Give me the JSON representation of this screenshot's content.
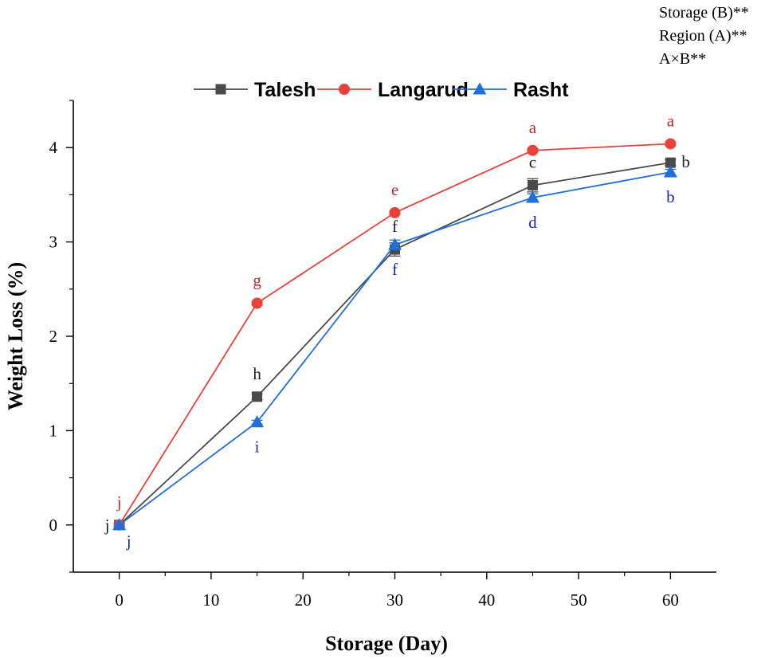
{
  "chart_data": {
    "type": "line",
    "xlabel": "Storage (Day)",
    "ylabel": "Weight Loss (%)",
    "xlim": [
      -5,
      65
    ],
    "ylim": [
      -0.5,
      4.5
    ],
    "xticks": [
      0,
      10,
      20,
      30,
      40,
      50,
      60
    ],
    "yticks": [
      0,
      1,
      2,
      3,
      4
    ],
    "x": [
      0,
      15,
      30,
      45,
      60
    ],
    "legend_position": "top",
    "significance": [
      "Storage (B)**",
      "Region (A)**",
      "A×B**"
    ],
    "series": [
      {
        "name": "Talesh",
        "color": "#4a4a4a",
        "marker": "square",
        "values": [
          0,
          1.36,
          2.92,
          3.6,
          3.84
        ],
        "errors": [
          0.02,
          0.03,
          0.07,
          0.07,
          0.03
        ],
        "letters": [
          "j",
          "h",
          "f",
          "c",
          "b"
        ],
        "letter_side": [
          "left",
          "above",
          "above",
          "above",
          "right"
        ]
      },
      {
        "name": "Langarud",
        "color": "#e8413a",
        "marker": "circle",
        "values": [
          0,
          2.35,
          3.31,
          3.97,
          4.04
        ],
        "errors": [
          0.02,
          0.02,
          0.02,
          0.02,
          0.02
        ],
        "letters": [
          "j",
          "g",
          "e",
          "a",
          "a"
        ],
        "letter_side": [
          "above",
          "above",
          "above",
          "above",
          "above"
        ]
      },
      {
        "name": "Rasht",
        "color": "#1f6fd6",
        "marker": "triangle",
        "values": [
          0,
          1.09,
          2.97,
          3.47,
          3.74
        ],
        "errors": [
          0.02,
          0.02,
          0.05,
          0.04,
          0.03
        ],
        "letters": [
          "j",
          "i",
          "f",
          "d",
          "b"
        ],
        "letter_side": [
          "below-right",
          "below",
          "below",
          "below",
          "below"
        ]
      }
    ],
    "letter_colors": {
      "Talesh": "#222222",
      "Langarud": "#c0282a",
      "Rasht": "#1a2aa0"
    }
  }
}
